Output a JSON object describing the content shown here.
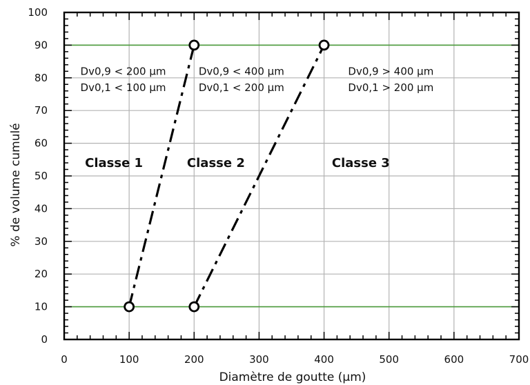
{
  "chart_data": {
    "type": "line",
    "xlabel": "Diamètre de goutte (µm)",
    "ylabel": "% de volume cumulé",
    "xlim": [
      0,
      700
    ],
    "ylim": [
      0,
      100
    ],
    "x_ticks": [
      0,
      100,
      200,
      300,
      400,
      500,
      600,
      700
    ],
    "y_ticks": [
      0,
      10,
      20,
      30,
      40,
      50,
      60,
      70,
      80,
      90,
      100
    ],
    "grid": true,
    "reference_lines": [
      {
        "axis": "y",
        "value": 10,
        "color": "#4a9a3a"
      },
      {
        "axis": "y",
        "value": 90,
        "color": "#4a9a3a"
      }
    ],
    "series": [
      {
        "points": [
          {
            "x": 100,
            "y": 10
          },
          {
            "x": 200,
            "y": 90
          }
        ],
        "style": "dash-dot",
        "marker": "open-circle"
      },
      {
        "points": [
          {
            "x": 200,
            "y": 10
          },
          {
            "x": 400,
            "y": 90
          }
        ],
        "style": "dash-dot",
        "marker": "open-circle"
      }
    ],
    "annotations": [
      {
        "text": "Dv0,9 < 200 µm",
        "x": 25,
        "y": 82
      },
      {
        "text": "Dv0,1 < 100 µm",
        "x": 25,
        "y": 77
      },
      {
        "text": "Dv0,9 < 400 µm",
        "x": 207,
        "y": 82
      },
      {
        "text": "Dv0,1 < 200 µm",
        "x": 207,
        "y": 77
      },
      {
        "text": "Dv0,9 > 400 µm",
        "x": 437,
        "y": 82
      },
      {
        "text": "Dv0,1 > 200 µm",
        "x": 437,
        "y": 77
      }
    ],
    "class_labels": [
      {
        "text": "Classe 1",
        "x": 32,
        "y": 54
      },
      {
        "text": "Classe 2",
        "x": 189,
        "y": 54
      },
      {
        "text": "Classe 3",
        "x": 412,
        "y": 54
      }
    ],
    "colors": {
      "grid": "#b3b3b3",
      "reference": "#4a9a3a",
      "series": "#000000"
    }
  }
}
